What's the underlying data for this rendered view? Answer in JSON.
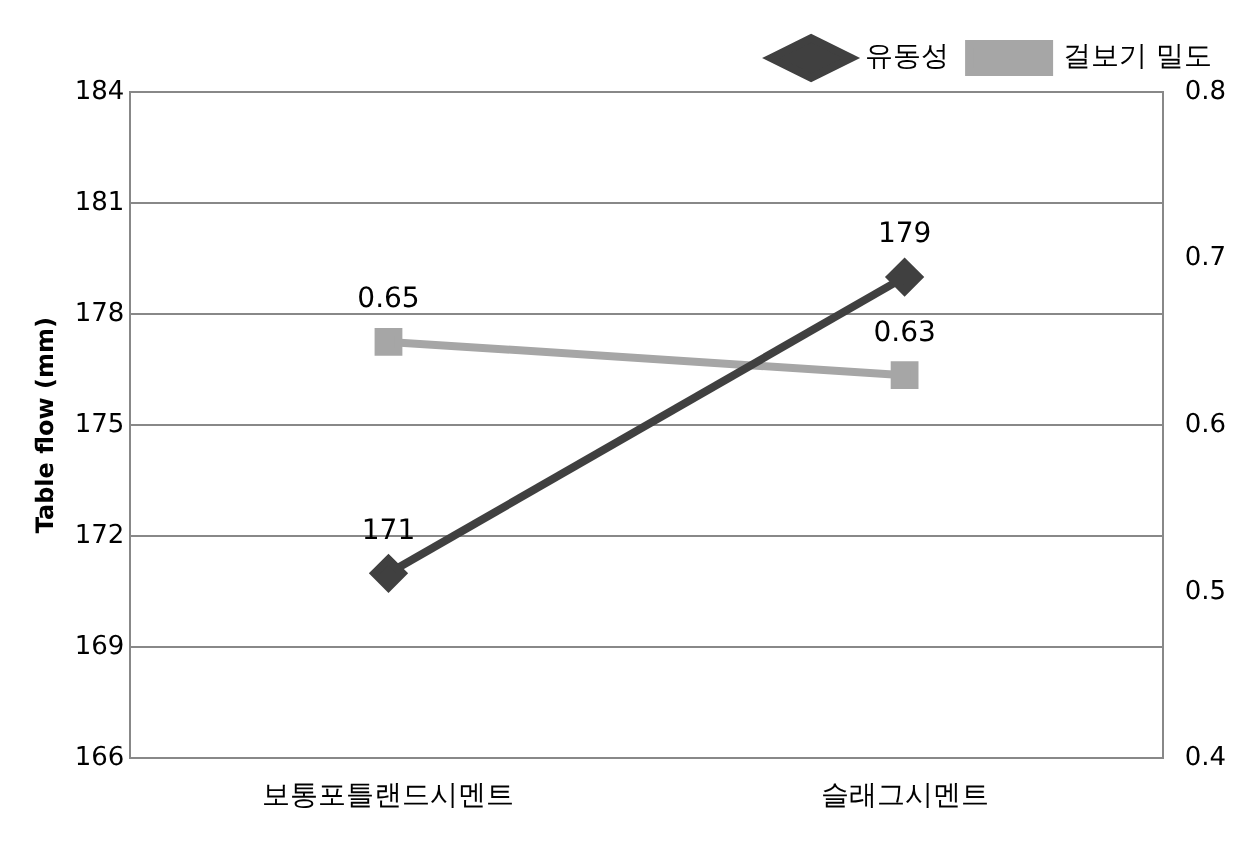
{
  "chart_data": {
    "type": "line",
    "ylabel": "Table flow (mm)",
    "categories": [
      "보통포틀랜드시멘트",
      "슬래그시멘트"
    ],
    "series": [
      {
        "name": "유동성",
        "color": "#404040",
        "values": [
          171,
          179
        ],
        "marker": "diamond"
      },
      {
        "name": "걸보기 밀도",
        "color": "#a6a6a6",
        "values": [
          0.65,
          0.63
        ],
        "axis": "y2",
        "marker": "square"
      }
    ],
    "ylim": [
      166,
      184
    ],
    "yticks": [
      166,
      169,
      172,
      175,
      178,
      181,
      184
    ],
    "y2lim": [
      0.4,
      0.8
    ],
    "y2ticks": [
      0.4,
      0.5,
      0.6,
      0.7,
      0.8
    ],
    "grid": "y",
    "legend": "top right",
    "data_labels": true,
    "line_style": "solid"
  }
}
